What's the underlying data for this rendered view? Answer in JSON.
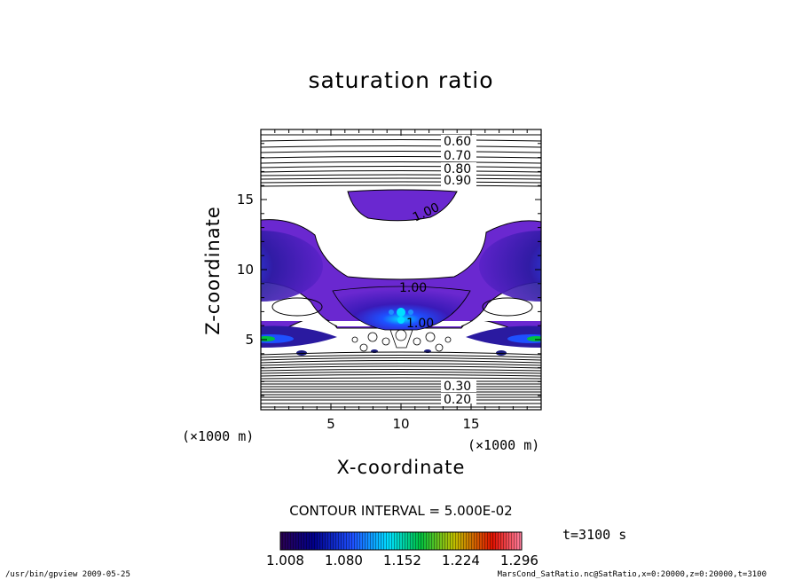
{
  "chart_data": {
    "type": "heatmap",
    "title": "saturation ratio",
    "xlabel": "X-coordinate",
    "ylabel": "Z-coordinate",
    "x_unit": "(×1000 m)",
    "z_unit": "(×1000 m)",
    "xlim": [
      0,
      20
    ],
    "zlim": [
      0,
      20
    ],
    "x_ticks": [
      "5",
      "10",
      "15"
    ],
    "z_ticks": [
      "5",
      "10",
      "15"
    ],
    "contour_interval_text": "CONTOUR INTERVAL = 5.000E-02",
    "contour_labels": [
      "0.60",
      "0.70",
      "0.80",
      "0.90",
      "1.00",
      "1.00",
      "1.00",
      "0.20",
      "0.30"
    ],
    "colorbar": {
      "min": 1.008,
      "max": 1.296,
      "tick_labels": [
        "1.008",
        "1.080",
        "1.152",
        "1.224",
        "1.296"
      ],
      "colors": [
        "#2a0050",
        "#00008c",
        "#1e50ff",
        "#00e0ff",
        "#00c040",
        "#c0c000",
        "#e01000",
        "#ff80a0"
      ]
    },
    "time_label": "t=3100 s"
  },
  "footer": {
    "left": "/usr/bin/gpview   2009-05-25",
    "right": "MarsCond_SatRatio.nc@SatRatio,x=0:20000,z=0:20000,t=3100"
  }
}
